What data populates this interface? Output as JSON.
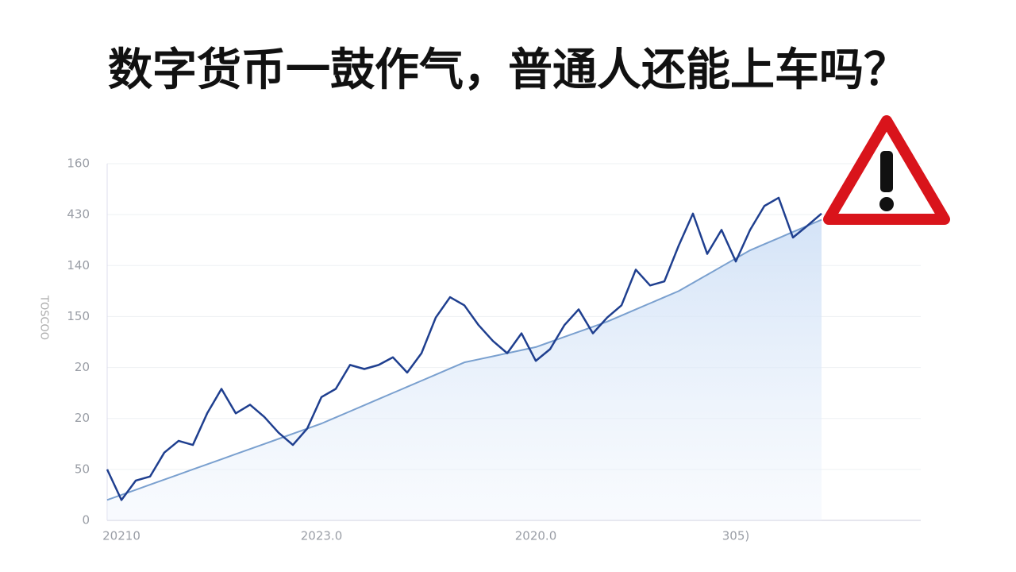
{
  "chart_data": {
    "type": "line",
    "title": "数字货币一鼓作气，普通人还能上车吗？",
    "y_label": "TOSCOO",
    "categories": [
      null,
      "20210",
      null,
      null,
      null,
      null,
      null,
      null,
      null,
      null,
      null,
      null,
      null,
      null,
      null,
      "2023.0",
      null,
      null,
      null,
      null,
      null,
      null,
      null,
      null,
      null,
      null,
      null,
      null,
      null,
      null,
      "2020.0",
      null,
      null,
      null,
      null,
      null,
      null,
      null,
      null,
      null,
      null,
      null,
      null,
      null,
      "305)",
      null,
      null,
      null,
      null,
      null,
      null
    ],
    "series": [
      {
        "color": "#1f3f8f",
        "values": [
          1.0,
          0.4,
          0.78,
          0.86,
          1.33,
          1.56,
          1.48,
          2.1,
          2.58,
          2.1,
          2.27,
          2.03,
          1.72,
          1.48,
          1.8,
          2.42,
          2.58,
          3.05,
          2.97,
          3.05,
          3.2,
          2.9,
          3.28,
          3.98,
          4.38,
          4.22,
          3.83,
          3.52,
          3.28,
          3.67,
          3.13,
          3.36,
          3.83,
          4.14,
          3.67,
          3.98,
          4.22,
          4.92,
          4.61,
          4.69,
          5.39,
          6.02,
          5.23,
          5.7,
          5.08,
          5.7,
          6.17,
          6.33,
          5.55,
          5.78,
          6.02
        ]
      },
      {
        "color": "#7aa0cf",
        "values": [
          0.4,
          0.5,
          0.6,
          0.7,
          0.8,
          0.9,
          1.0,
          1.1,
          1.2,
          1.3,
          1.4,
          1.5,
          1.6,
          1.7,
          1.8,
          1.9,
          2.02,
          2.14,
          2.26,
          2.38,
          2.5,
          2.62,
          2.74,
          2.86,
          2.98,
          3.1,
          3.16,
          3.22,
          3.28,
          3.34,
          3.4,
          3.5,
          3.6,
          3.7,
          3.8,
          3.9,
          4.02,
          4.14,
          4.26,
          4.38,
          4.5,
          4.66,
          4.82,
          4.98,
          5.14,
          5.3,
          5.42,
          5.54,
          5.66,
          5.78,
          5.9
        ]
      }
    ],
    "ylim": [
      0,
      7
    ],
    "yticks": [
      0,
      {
        "value": 1,
        "label": "50"
      },
      {
        "value": 2,
        "label": "20"
      },
      {
        "value": 3,
        "label": "20"
      },
      {
        "value": 4,
        "label": "150"
      },
      {
        "value": 5,
        "label": "140"
      },
      {
        "value": 6,
        "label": "430"
      },
      {
        "value": 7,
        "label": "160"
      }
    ],
    "grid": true
  }
}
